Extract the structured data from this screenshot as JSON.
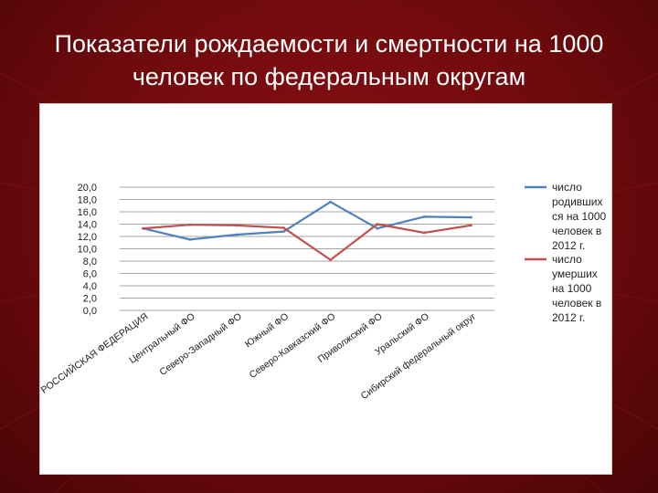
{
  "slide": {
    "title_line1": "Показатели рождаемости и смертности на 1000",
    "title_line2": "человек по федеральным округам"
  },
  "chart_data": {
    "type": "line",
    "categories": [
      "РОССИЙСКАЯ ФЕДЕРАЦИЯ",
      "Центральный ФО",
      "Северо-Западный ФО",
      "Южный ФО",
      "Северо-Кавказский ФО",
      "Приволжский ФО",
      "Уральский ФО",
      "Сибирский федеральный округ"
    ],
    "series": [
      {
        "name": "число родившихся на 1000 человек в 2012 г.",
        "legend_lines": [
          "число",
          "родивших",
          "ся на 1000",
          "человек в",
          "2012 г."
        ],
        "color": "#4f81bd",
        "values": [
          13.3,
          11.5,
          12.3,
          12.8,
          17.6,
          13.3,
          15.2,
          15.1
        ]
      },
      {
        "name": "число умерших на 1000 человек в 2012 г.",
        "legend_lines": [
          "число",
          "умерших",
          "на 1000",
          "человек в",
          "2012 г."
        ],
        "color": "#c0504d",
        "values": [
          13.3,
          13.9,
          13.8,
          13.4,
          8.2,
          14.0,
          12.6,
          13.8
        ]
      }
    ],
    "yticks": [
      "0,0",
      "2,0",
      "4,0",
      "6,0",
      "8,0",
      "10,0",
      "12,0",
      "14,0",
      "16,0",
      "18,0",
      "20,0"
    ],
    "ylim": [
      0,
      20
    ],
    "gridlines": true,
    "legend_position": "right"
  }
}
